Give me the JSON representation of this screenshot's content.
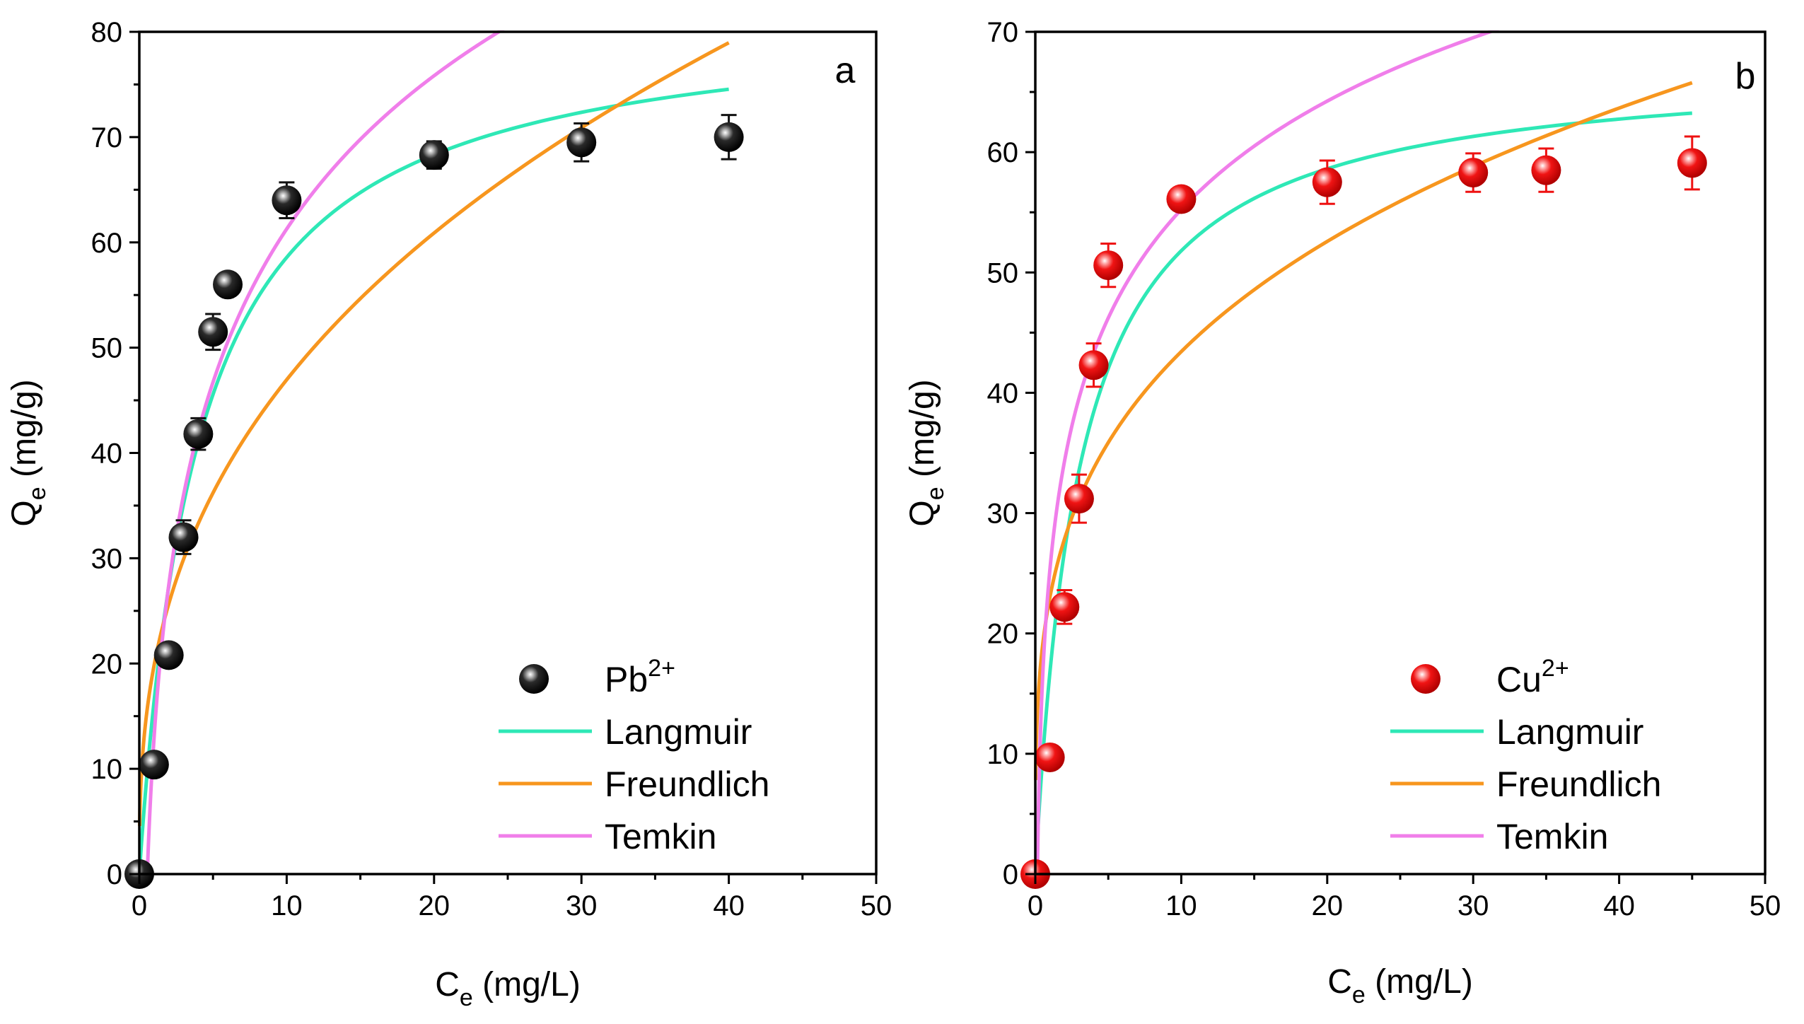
{
  "chart_data": [
    {
      "type": "scatter",
      "panel_label": "a",
      "xlabel": {
        "main": "C",
        "sub": "e",
        "rest": " (mg/L)"
      },
      "ylabel": {
        "main": "Q",
        "sub": "e",
        "rest": " (mg/g)"
      },
      "xlim": [
        0,
        50
      ],
      "ylim": [
        0,
        80
      ],
      "xticks": [
        0,
        10,
        20,
        30,
        40,
        50
      ],
      "yticks": [
        0,
        10,
        20,
        30,
        40,
        50,
        60,
        70,
        80
      ],
      "x_tick_labels": [
        "0",
        "10",
        "20",
        "30",
        "40",
        "50"
      ],
      "y_tick_labels": [
        "0",
        "10",
        "20",
        "30",
        "40",
        "50",
        "60",
        "70",
        "80"
      ],
      "grid": false,
      "legend_position": "bottom-right",
      "points": {
        "name": "Pb",
        "sup": "2+",
        "color": "#111111",
        "x": [
          0,
          1,
          2,
          3,
          4,
          5,
          6,
          10,
          20,
          30,
          40
        ],
        "y": [
          0,
          10.4,
          20.8,
          32.0,
          41.8,
          51.5,
          56.0,
          64.0,
          68.3,
          69.5,
          70.0
        ],
        "err": [
          0,
          0.5,
          0.9,
          1.6,
          1.5,
          1.7,
          0.6,
          1.7,
          1.3,
          1.8,
          2.1
        ]
      },
      "series": [
        {
          "name": "Langmuir",
          "color": "#2EE8B6",
          "model": "langmuir",
          "params": {
            "qm": 82.0,
            "k": 0.25
          },
          "xmin": 0.02,
          "xmax": 40
        },
        {
          "name": "Freundlich",
          "color": "#F7961E",
          "model": "freundlich",
          "params": {
            "k": 19.8,
            "n": 0.375
          },
          "xmin": 0.02,
          "xmax": 40
        },
        {
          "name": "Temkin",
          "color": "#F07EEA",
          "model": "temkin",
          "params": {
            "b": 21.0,
            "kt": 1.85
          },
          "xmin": 0.55,
          "xmax": 40
        }
      ]
    },
    {
      "type": "scatter",
      "panel_label": "b",
      "xlabel": {
        "main": "C",
        "sub": "e",
        "rest": " (mg/L)"
      },
      "ylabel": {
        "main": "Q",
        "sub": "e",
        "rest": " (mg/g)"
      },
      "xlim": [
        0,
        50
      ],
      "ylim": [
        0,
        70
      ],
      "xticks": [
        0,
        10,
        20,
        30,
        40,
        50
      ],
      "yticks": [
        0,
        10,
        20,
        30,
        40,
        50,
        60,
        70
      ],
      "x_tick_labels": [
        "0",
        "10",
        "20",
        "30",
        "40",
        "50"
      ],
      "y_tick_labels": [
        "0",
        "10",
        "20",
        "30",
        "40",
        "50",
        "60",
        "70"
      ],
      "grid": false,
      "legend_position": "bottom-right",
      "points": {
        "name": "Cu",
        "sup": "2+",
        "color": "#EE1111",
        "x": [
          0,
          1,
          2,
          3,
          4,
          5,
          10,
          20,
          30,
          35,
          45
        ],
        "y": [
          0,
          9.7,
          22.2,
          31.2,
          42.3,
          50.6,
          56.1,
          57.5,
          58.3,
          58.5,
          59.1
        ],
        "err": [
          0,
          0.4,
          1.4,
          2.0,
          1.8,
          1.8,
          0.6,
          1.8,
          1.6,
          1.8,
          2.2
        ]
      },
      "series": [
        {
          "name": "Langmuir",
          "color": "#2EE8B6",
          "model": "langmuir",
          "params": {
            "qm": 67.5,
            "k": 0.33
          },
          "xmin": 0.02,
          "xmax": 45
        },
        {
          "name": "Freundlich",
          "color": "#F7961E",
          "model": "freundlich",
          "params": {
            "k": 23.0,
            "n": 0.276
          },
          "xmin": 0.02,
          "xmax": 45
        },
        {
          "name": "Temkin",
          "color": "#F07EEA",
          "model": "temkin",
          "params": {
            "b": 13.0,
            "kt": 7.0
          },
          "xmin": 0.15,
          "xmax": 45
        }
      ]
    }
  ]
}
